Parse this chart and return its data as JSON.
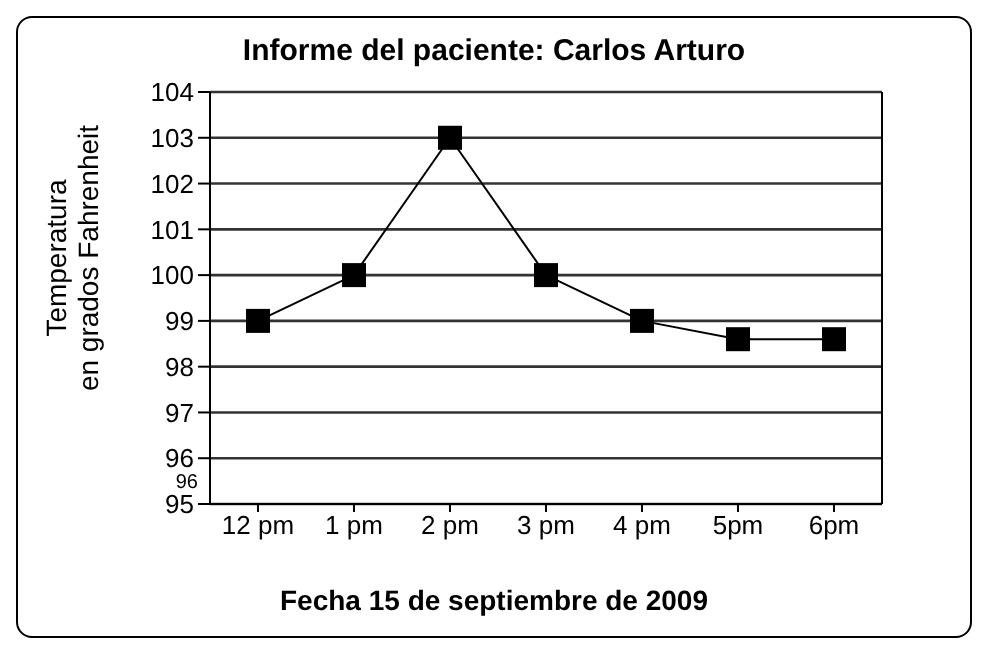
{
  "chart_data": {
    "type": "line",
    "title": "Informe del paciente: Carlos Arturo",
    "xlabel": "Fecha 15 de septiembre de 2009",
    "ylabel": "Temperatura\nen grados Fahrenheit",
    "categories": [
      "12 pm",
      "1 pm",
      "2 pm",
      "3 pm",
      "4 pm",
      "5pm",
      "6pm"
    ],
    "series": [
      {
        "color": "#000000",
        "values": [
          99,
          100,
          103,
          100,
          99,
          98.6,
          98.6
        ]
      }
    ],
    "ylim": [
      95,
      104
    ],
    "yticks": [
      95,
      96,
      97,
      98,
      99,
      100,
      101,
      102,
      103,
      104
    ],
    "annotations": [
      "96"
    ],
    "grid": "y",
    "marker": "square",
    "line_style": "solid"
  }
}
